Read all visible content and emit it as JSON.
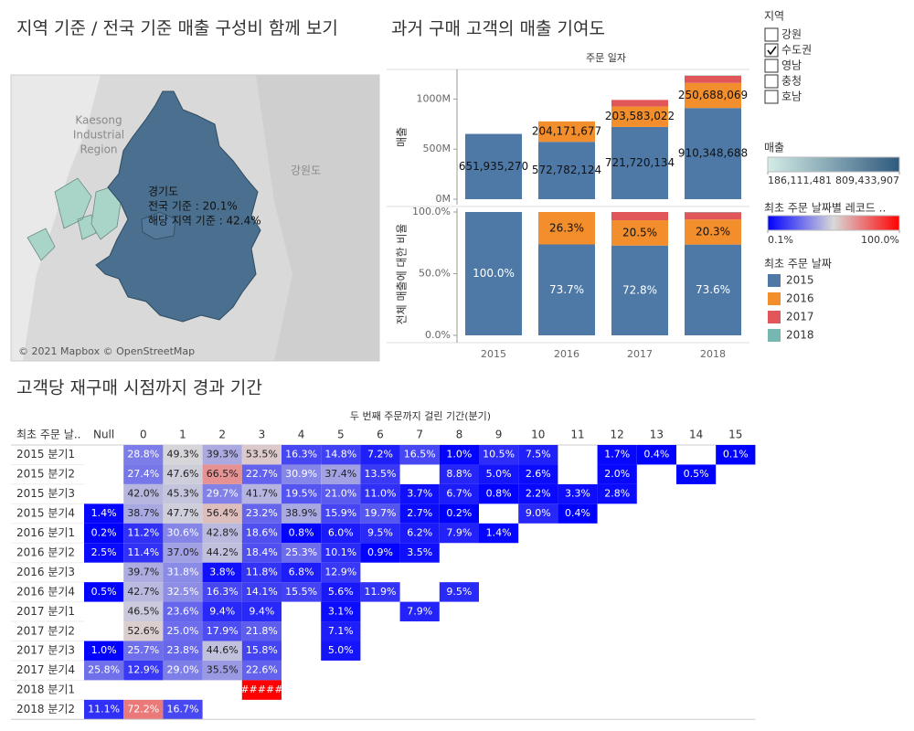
{
  "map": {
    "title": "지역 기준 / 전국 기준 매출 구성비 함께 보기",
    "place_labels": [
      "Kaesong",
      "Industrial",
      "Region"
    ],
    "province_label": "강원도",
    "tooltip": {
      "region": "경기도",
      "lines": [
        "전국 기준 : 20.1%",
        "해당 지역 기준 : 42.4%"
      ]
    },
    "credit": "© 2021 Mapbox © OpenStreetMap",
    "legend": {
      "title": "매출",
      "min": 186111481,
      "max": 809433907,
      "min_label": "186,111,481",
      "max_label": "809,433,907",
      "colors": [
        "#d3ece6",
        "#2f5a7d"
      ]
    }
  },
  "filter": {
    "title": "지역",
    "options": [
      "강원",
      "수도권",
      "영남",
      "충청",
      "호남"
    ],
    "checked": [
      false,
      true,
      false,
      false,
      false
    ]
  },
  "chart_data": [
    {
      "type": "stacked_bar",
      "title": "과거 구매 고객의 매출 기여도",
      "x_title": "주문 일자",
      "y_title": "매출",
      "legend_title": "최초 주문 날짜",
      "categories": [
        "2015",
        "2016",
        "2017",
        "2018"
      ],
      "series": [
        {
          "name": "2015",
          "color": "#4e79a7",
          "values": [
            651935270,
            572782124,
            721720134,
            910348688
          ],
          "value_labels": [
            "651,935,270",
            "572,782,124",
            "721,720,134",
            "910,348,688"
          ]
        },
        {
          "name": "2016",
          "color": "#f28e2b",
          "values": [
            null,
            204171677,
            203583022,
            250688069
          ],
          "value_labels": [
            null,
            "204,171,677",
            "203,583,022",
            "250,688,069"
          ]
        },
        {
          "name": "2017",
          "color": "#e15759",
          "values": [
            null,
            null,
            66100000,
            71700000
          ]
        },
        {
          "name": "2018",
          "color": "#76b7b2",
          "values": [
            null,
            null,
            null,
            3700000
          ]
        }
      ],
      "ylim": [
        0,
        1250000000
      ],
      "yticks": [
        {
          "value": 0,
          "label": "0M"
        },
        {
          "value": 500000000,
          "label": "500M"
        },
        {
          "value": 1000000000,
          "label": "1000M"
        }
      ]
    },
    {
      "type": "stacked_bar",
      "y_title": "전체 매출에 대한 비율",
      "series": [
        {
          "values": [
            100,
            73.7,
            72.8,
            73.6
          ],
          "value_labels": [
            "100.0%",
            "73.7%",
            "72.8%",
            "73.6%"
          ]
        },
        {
          "values": [
            null,
            26.3,
            20.5,
            20.3
          ],
          "value_labels": [
            null,
            "26.3%",
            "20.5%",
            "20.3%"
          ]
        },
        {
          "values": [
            null,
            null,
            6.7,
            5.8
          ]
        },
        {
          "values": [
            null,
            null,
            null,
            0.3
          ]
        }
      ],
      "ylim": [
        0,
        100
      ],
      "yticks": [
        {
          "value": 0,
          "label": "0.0%"
        },
        {
          "value": 50,
          "label": "50.0%"
        },
        {
          "value": 100,
          "label": "100.0%"
        }
      ]
    },
    {
      "type": "heatmap",
      "title": "고객당 재구매 시점까지 경과 기간",
      "x_title": "두 번째 주문까지 걸린 기간(분기)",
      "row_header": "최초 주문 날..",
      "columns": [
        "Null",
        "0",
        "1",
        "2",
        "3",
        "4",
        "5",
        "6",
        "7",
        "8",
        "9",
        "10",
        "11",
        "12",
        "13",
        "14",
        "15"
      ],
      "rows": [
        "2015 분기1",
        "2015 분기2",
        "2015 분기3",
        "2015 분기4",
        "2016 분기1",
        "2016 분기2",
        "2016 분기3",
        "2016 분기4",
        "2017 분기1",
        "2017 분기2",
        "2017 분기3",
        "2017 분기4",
        "2018 분기1",
        "2018 분기2"
      ],
      "values": [
        [
          null,
          28.8,
          49.3,
          39.3,
          53.5,
          16.3,
          14.8,
          7.2,
          16.5,
          1.0,
          10.5,
          7.5,
          null,
          1.7,
          0.4,
          null,
          0.1
        ],
        [
          null,
          27.4,
          47.6,
          66.5,
          22.7,
          30.9,
          37.4,
          13.5,
          null,
          8.8,
          5.0,
          2.6,
          null,
          2.0,
          null,
          0.5,
          null
        ],
        [
          null,
          42.0,
          45.3,
          29.7,
          41.7,
          19.5,
          21.0,
          11.0,
          3.7,
          6.7,
          0.8,
          2.2,
          3.3,
          2.8,
          null,
          null,
          null
        ],
        [
          1.4,
          38.7,
          47.7,
          56.4,
          23.2,
          38.9,
          15.9,
          19.7,
          2.7,
          0.2,
          null,
          9.0,
          0.4,
          null,
          null,
          null,
          null
        ],
        [
          0.2,
          11.2,
          30.6,
          42.8,
          18.6,
          0.8,
          6.0,
          9.5,
          6.2,
          7.9,
          1.4,
          null,
          null,
          null,
          null,
          null,
          null
        ],
        [
          2.5,
          11.4,
          37.0,
          44.2,
          18.4,
          25.3,
          10.1,
          0.9,
          3.5,
          null,
          null,
          null,
          null,
          null,
          null,
          null,
          null
        ],
        [
          null,
          39.7,
          31.8,
          3.8,
          11.8,
          6.8,
          12.9,
          null,
          null,
          null,
          null,
          null,
          null,
          null,
          null,
          null,
          null
        ],
        [
          0.5,
          42.7,
          32.5,
          16.3,
          14.1,
          15.5,
          5.6,
          11.9,
          null,
          9.5,
          null,
          null,
          null,
          null,
          null,
          null,
          null
        ],
        [
          null,
          46.5,
          23.6,
          9.4,
          9.4,
          null,
          3.1,
          null,
          7.9,
          null,
          null,
          null,
          null,
          null,
          null,
          null,
          null
        ],
        [
          null,
          52.6,
          25.0,
          17.9,
          21.8,
          null,
          7.1,
          null,
          null,
          null,
          null,
          null,
          null,
          null,
          null,
          null,
          null
        ],
        [
          1.0,
          25.7,
          23.8,
          44.6,
          15.8,
          null,
          5.0,
          null,
          null,
          null,
          null,
          null,
          null,
          null,
          null,
          null,
          null
        ],
        [
          25.8,
          12.9,
          29.0,
          35.5,
          22.6,
          null,
          null,
          null,
          null,
          null,
          null,
          null,
          null,
          null,
          null,
          null,
          null
        ],
        [
          null,
          null,
          null,
          null,
          100,
          null,
          null,
          null,
          null,
          null,
          null,
          null,
          null,
          null,
          null,
          null,
          null
        ],
        [
          11.1,
          72.2,
          16.7,
          null,
          null,
          null,
          null,
          null,
          null,
          null,
          null,
          null,
          null,
          null,
          null,
          null,
          null
        ]
      ],
      "value_labels": [
        [
          null,
          "28.8%",
          "49.3%",
          "39.3%",
          "53.5%",
          "16.3%",
          "14.8%",
          "7.2%",
          "16.5%",
          "1.0%",
          "10.5%",
          "7.5%",
          null,
          "1.7%",
          "0.4%",
          null,
          "0.1%"
        ],
        [
          null,
          "27.4%",
          "47.6%",
          "66.5%",
          "22.7%",
          "30.9%",
          "37.4%",
          "13.5%",
          null,
          "8.8%",
          "5.0%",
          "2.6%",
          null,
          "2.0%",
          null,
          "0.5%",
          null
        ],
        [
          null,
          "42.0%",
          "45.3%",
          "29.7%",
          "41.7%",
          "19.5%",
          "21.0%",
          "11.0%",
          "3.7%",
          "6.7%",
          "0.8%",
          "2.2%",
          "3.3%",
          "2.8%",
          null,
          null,
          null
        ],
        [
          "1.4%",
          "38.7%",
          "47.7%",
          "56.4%",
          "23.2%",
          "38.9%",
          "15.9%",
          "19.7%",
          "2.7%",
          "0.2%",
          null,
          "9.0%",
          "0.4%",
          null,
          null,
          null,
          null
        ],
        [
          "0.2%",
          "11.2%",
          "30.6%",
          "42.8%",
          "18.6%",
          "0.8%",
          "6.0%",
          "9.5%",
          "6.2%",
          "7.9%",
          "1.4%",
          null,
          null,
          null,
          null,
          null,
          null
        ],
        [
          "2.5%",
          "11.4%",
          "37.0%",
          "44.2%",
          "18.4%",
          "25.3%",
          "10.1%",
          "0.9%",
          "3.5%",
          null,
          null,
          null,
          null,
          null,
          null,
          null,
          null
        ],
        [
          null,
          "39.7%",
          "31.8%",
          "3.8%",
          "11.8%",
          "6.8%",
          "12.9%",
          null,
          null,
          null,
          null,
          null,
          null,
          null,
          null,
          null,
          null
        ],
        [
          "0.5%",
          "42.7%",
          "32.5%",
          "16.3%",
          "14.1%",
          "15.5%",
          "5.6%",
          "11.9%",
          null,
          "9.5%",
          null,
          null,
          null,
          null,
          null,
          null,
          null
        ],
        [
          null,
          "46.5%",
          "23.6%",
          "9.4%",
          "9.4%",
          null,
          "3.1%",
          null,
          "7.9%",
          null,
          null,
          null,
          null,
          null,
          null,
          null,
          null
        ],
        [
          null,
          "52.6%",
          "25.0%",
          "17.9%",
          "21.8%",
          null,
          "7.1%",
          null,
          null,
          null,
          null,
          null,
          null,
          null,
          null,
          null,
          null
        ],
        [
          "1.0%",
          "25.7%",
          "23.8%",
          "44.6%",
          "15.8%",
          null,
          "5.0%",
          null,
          null,
          null,
          null,
          null,
          null,
          null,
          null,
          null,
          null
        ],
        [
          "25.8%",
          "12.9%",
          "29.0%",
          "35.5%",
          "22.6%",
          null,
          null,
          null,
          null,
          null,
          null,
          null,
          null,
          null,
          null,
          null,
          null
        ],
        [
          null,
          null,
          null,
          null,
          "#####",
          null,
          null,
          null,
          null,
          null,
          null,
          null,
          null,
          null,
          null,
          null,
          null
        ],
        [
          "11.1%",
          "72.2%",
          "16.7%",
          null,
          null,
          null,
          null,
          null,
          null,
          null,
          null,
          null,
          null,
          null,
          null,
          null,
          null
        ]
      ],
      "legend": {
        "title": "최초 주문 날짜별 레코드 ..",
        "min": 0.1,
        "max": 100,
        "min_label": "0.1%",
        "max_label": "100.0%",
        "colors": [
          "#0000ff",
          "#d9d9d9",
          "#ff0000"
        ]
      }
    }
  ]
}
